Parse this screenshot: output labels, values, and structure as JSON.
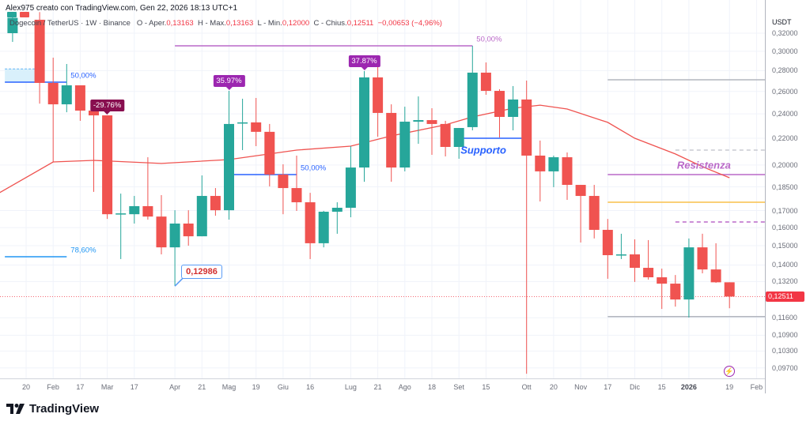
{
  "header": {
    "title": "Alex975 creato con TradingView.com, Gen 22, 2026 18:13 UTC+1",
    "symbol": "Dogecoin / TetherUS · 1W · Binance",
    "o_label": "O - Aper.",
    "o_value": "0,13163",
    "h_label": "H - Max.",
    "h_value": "0,13163",
    "l_label": "L - Min.",
    "l_value": "0,12000",
    "c_label": "C - Chius.",
    "c_value": "0,12511",
    "change": "−0,00653 (−4,96%)"
  },
  "colors": {
    "up": "#26a69a",
    "down": "#f05350",
    "ma": "#ef5350",
    "accent_purple": "#9c27b0",
    "accent_blue": "#2962ff",
    "price_tag": "#f23645"
  },
  "chart_data": {
    "type": "candlestick",
    "scale": "log",
    "ylim": [
      0.0935,
      0.345
    ],
    "y_unit": "USDT",
    "y_ticks": [
      "0,32000",
      "0,30000",
      "0,28000",
      "0,26000",
      "0,24000",
      "0,22000",
      "0,20000",
      "0,18500",
      "0,17000",
      "0,16000",
      "0,15000",
      "0,14000",
      "0,13200",
      "0,11600",
      "0,10900",
      "0,10300",
      "0,09700"
    ],
    "x_ticks": [
      {
        "label": "20",
        "date": "2025-01-20"
      },
      {
        "label": "Feb",
        "date": "2025-02-03"
      },
      {
        "label": "17",
        "date": "2025-02-17"
      },
      {
        "label": "Mar",
        "date": "2025-03-03"
      },
      {
        "label": "17",
        "date": "2025-03-17"
      },
      {
        "label": "Apr",
        "date": "2025-04-07"
      },
      {
        "label": "21",
        "date": "2025-04-21"
      },
      {
        "label": "Mag",
        "date": "2025-05-05"
      },
      {
        "label": "19",
        "date": "2025-05-19"
      },
      {
        "label": "Giu",
        "date": "2025-06-02"
      },
      {
        "label": "16",
        "date": "2025-06-16"
      },
      {
        "label": "Lug",
        "date": "2025-07-07"
      },
      {
        "label": "21",
        "date": "2025-07-21"
      },
      {
        "label": "Ago",
        "date": "2025-08-04"
      },
      {
        "label": "18",
        "date": "2025-08-18"
      },
      {
        "label": "Set",
        "date": "2025-09-01"
      },
      {
        "label": "15",
        "date": "2025-09-15"
      },
      {
        "label": "Ott",
        "date": "2025-10-06"
      },
      {
        "label": "20",
        "date": "2025-10-20"
      },
      {
        "label": "Nov",
        "date": "2025-11-03"
      },
      {
        "label": "17",
        "date": "2025-11-17"
      },
      {
        "label": "Dic",
        "date": "2025-12-01"
      },
      {
        "label": "15",
        "date": "2025-12-15"
      },
      {
        "label": "2026",
        "date": "2025-12-29",
        "bold": true
      },
      {
        "label": "19",
        "date": "2026-01-19"
      },
      {
        "label": "Feb",
        "date": "2026-02-02"
      }
    ],
    "last_price": "0,12511",
    "candles": [
      [
        "2025-01-13",
        0.32,
        0.345,
        0.3102,
        0.338
      ],
      [
        "2025-01-27",
        0.3357,
        0.345,
        0.2489,
        0.268
      ],
      [
        "2025-02-03",
        0.268,
        0.2932,
        0.2022,
        0.2483
      ],
      [
        "2025-02-10",
        0.2483,
        0.2867,
        0.2414,
        0.2657
      ],
      [
        "2025-02-17",
        0.2657,
        0.2657,
        0.2341,
        0.2428
      ],
      [
        "2025-02-24",
        0.2428,
        0.2428,
        0.1817,
        0.2387
      ],
      [
        "2025-03-03",
        0.2387,
        0.2387,
        0.165,
        0.1678
      ],
      [
        "2025-03-10",
        0.1678,
        0.1806,
        0.143,
        0.1683
      ],
      [
        "2025-03-17",
        0.1678,
        0.1791,
        0.1623,
        0.1727
      ],
      [
        "2025-03-24",
        0.1727,
        0.2056,
        0.1646,
        0.1664
      ],
      [
        "2025-03-31",
        0.1664,
        0.1796,
        0.1454,
        0.1491
      ],
      [
        "2025-04-07",
        0.1491,
        0.1702,
        0.1299,
        0.1623
      ],
      [
        "2025-04-14",
        0.1623,
        0.1702,
        0.15,
        0.1551
      ],
      [
        "2025-04-21",
        0.1551,
        0.1927,
        0.1551,
        0.1791
      ],
      [
        "2025-04-28",
        0.1791,
        0.1842,
        0.1669,
        0.1702
      ],
      [
        "2025-05-05",
        0.1702,
        0.2605,
        0.1646,
        0.2315
      ],
      [
        "2025-05-12",
        0.2321,
        0.2533,
        0.2109,
        0.2328
      ],
      [
        "2025-05-19",
        0.2328,
        0.254,
        0.2139,
        0.2251
      ],
      [
        "2025-05-26",
        0.2251,
        0.2315,
        0.1853,
        0.1933
      ],
      [
        "2025-06-02",
        0.1933,
        0.2005,
        0.1678,
        0.1842
      ],
      [
        "2025-06-09",
        0.1842,
        0.2068,
        0.1698,
        0.1751
      ],
      [
        "2025-06-16",
        0.1751,
        0.1811,
        0.143,
        0.1513
      ],
      [
        "2025-06-23",
        0.1513,
        0.1698,
        0.1491,
        0.1693
      ],
      [
        "2025-06-30",
        0.1693,
        0.1751,
        0.1565,
        0.1717
      ],
      [
        "2025-07-07",
        0.1717,
        0.2139,
        0.166,
        0.1982
      ],
      [
        "2025-07-14",
        0.1982,
        0.2795,
        0.1884,
        0.2733
      ],
      [
        "2025-07-21",
        0.2733,
        0.2859,
        0.2212,
        0.2408
      ],
      [
        "2025-07-28",
        0.2408,
        0.2483,
        0.1884,
        0.1982
      ],
      [
        "2025-08-04",
        0.1982,
        0.2462,
        0.1955,
        0.2334
      ],
      [
        "2025-08-11",
        0.2334,
        0.2554,
        0.2157,
        0.2347
      ],
      [
        "2025-08-18",
        0.2347,
        0.2449,
        0.2074,
        0.2315
      ],
      [
        "2025-08-25",
        0.2315,
        0.2341,
        0.2062,
        0.2133
      ],
      [
        "2025-09-01",
        0.2133,
        0.2282,
        0.2045,
        0.2282
      ],
      [
        "2025-09-08",
        0.2289,
        0.3059,
        0.2263,
        0.278
      ],
      [
        "2025-09-15",
        0.278,
        0.2883,
        0.2569,
        0.2605
      ],
      [
        "2025-09-22",
        0.2605,
        0.262,
        0.2206,
        0.2374
      ],
      [
        "2025-09-29",
        0.2374,
        0.265,
        0.2263,
        0.2526
      ],
      [
        "2025-10-06",
        0.2526,
        0.2702,
        0.095,
        0.2068
      ],
      [
        "2025-10-13",
        0.2068,
        0.2182,
        0.1756,
        0.1955
      ],
      [
        "2025-10-20",
        0.1955,
        0.2068,
        0.1848,
        0.2056
      ],
      [
        "2025-10-27",
        0.2056,
        0.2091,
        0.1766,
        0.1863
      ],
      [
        "2025-11-03",
        0.1863,
        0.1863,
        0.1517,
        0.1791
      ],
      [
        "2025-11-10",
        0.1791,
        0.1863,
        0.1539,
        0.1587
      ],
      [
        "2025-11-17",
        0.1587,
        0.165,
        0.1333,
        0.145
      ],
      [
        "2025-11-24",
        0.145,
        0.1565,
        0.143,
        0.1454
      ],
      [
        "2025-12-01",
        0.1454,
        0.1534,
        0.1318,
        0.1386
      ],
      [
        "2025-12-08",
        0.1386,
        0.153,
        0.1329,
        0.134
      ],
      [
        "2025-12-15",
        0.134,
        0.1382,
        0.1197,
        0.131
      ],
      [
        "2025-12-22",
        0.131,
        0.1351,
        0.1207,
        0.1238
      ],
      [
        "2025-12-29",
        0.1238,
        0.1539,
        0.1161,
        0.1491
      ],
      [
        "2026-01-05",
        0.1491,
        0.1565,
        0.1359,
        0.1378
      ],
      [
        "2026-01-12",
        0.1378,
        0.1513,
        0.1314,
        0.13163
      ],
      [
        "2026-01-19",
        0.13163,
        0.13163,
        0.12,
        0.12511
      ]
    ],
    "moving_average": [
      [
        "2025-01-06",
        0.181
      ],
      [
        "2025-02-03",
        0.2022
      ],
      [
        "2025-02-24",
        0.2033
      ],
      [
        "2025-03-31",
        0.2011
      ],
      [
        "2025-05-05",
        0.2039
      ],
      [
        "2025-06-09",
        0.2109
      ],
      [
        "2025-07-07",
        0.2139
      ],
      [
        "2025-07-28",
        0.2219
      ],
      [
        "2025-08-25",
        0.2308
      ],
      [
        "2025-09-08",
        0.2374
      ],
      [
        "2025-09-29",
        0.2449
      ],
      [
        "2025-10-13",
        0.2476
      ],
      [
        "2025-10-27",
        0.2442
      ],
      [
        "2025-11-17",
        0.2328
      ],
      [
        "2025-12-01",
        0.22
      ],
      [
        "2025-12-22",
        0.208
      ],
      [
        "2026-01-05",
        0.1988
      ],
      [
        "2026-01-19",
        0.1911
      ]
    ],
    "drawings": {
      "fib_zone": {
        "from": "2025-01-09",
        "to": "2025-01-25",
        "top": 0.2817,
        "bottom": 0.2687
      },
      "lines": [
        {
          "from": "2025-01-09",
          "to": "2025-02-10",
          "price": 0.2687,
          "color": "#2962ff",
          "label": "50,00%",
          "dash": false
        },
        {
          "from": "2025-01-09",
          "to": "2025-02-10",
          "price": 0.1442,
          "color": "#2196f3",
          "label": "78,60%",
          "dash": false
        },
        {
          "from": "2025-04-07",
          "to": "2025-09-08",
          "price": 0.3059,
          "color": "#ba68c8",
          "label": "50,00%",
          "dash": false
        },
        {
          "from": "2025-05-05",
          "to": "2025-06-09",
          "price": 0.1933,
          "color": "#2962ff",
          "label": "50,00%",
          "dash": false
        },
        {
          "from": "2025-09-01",
          "to": "2025-10-06",
          "price": 0.22,
          "color": "#2962ff",
          "label": "",
          "dash": false
        },
        {
          "from": "2025-11-17",
          "to": "2026-03-01",
          "price": 0.271,
          "color": "#b2b5be",
          "label": "",
          "dash": false
        },
        {
          "from": "2025-12-22",
          "to": "2026-03-01",
          "price": 0.2109,
          "color": "#c8cad1",
          "label": "",
          "dash": true
        },
        {
          "from": "2025-11-17",
          "to": "2026-03-01",
          "price": 0.1933,
          "color": "#ba68c8",
          "label": "",
          "dash": false
        },
        {
          "from": "2025-11-17",
          "to": "2026-03-01",
          "price": 0.1751,
          "color": "#f9c04a",
          "label": "",
          "dash": false
        },
        {
          "from": "2025-12-22",
          "to": "2026-03-01",
          "price": 0.1632,
          "color": "#ba68c8",
          "label": "",
          "dash": true
        },
        {
          "from": "2025-11-17",
          "to": "2026-03-01",
          "price": 0.1165,
          "color": "#b2b5be",
          "label": "",
          "dash": false
        }
      ],
      "tags": [
        {
          "date": "2025-03-03",
          "price": 0.2387,
          "text": "-29.76%",
          "color": "#880e4f"
        },
        {
          "date": "2025-05-05",
          "price": 0.2605,
          "text": "35.97%",
          "color": "#9c27b0"
        },
        {
          "date": "2025-07-14",
          "price": 0.2795,
          "text": "37.87%",
          "color": "#9c27b0"
        }
      ],
      "support_text": {
        "date": "2025-09-01",
        "price": 0.211,
        "text": "Supporto",
        "color": "#2962ff"
      },
      "resistance_text": {
        "date": "2025-12-29",
        "price": 0.2,
        "text": "Resistenza",
        "color": "#ba68c8"
      },
      "callout": {
        "date": "2025-04-07",
        "price": 0.12986,
        "text": "0,12986"
      }
    }
  },
  "footer": {
    "brand": "TradingView"
  },
  "icons": {
    "bolt": "lightning-icon"
  }
}
